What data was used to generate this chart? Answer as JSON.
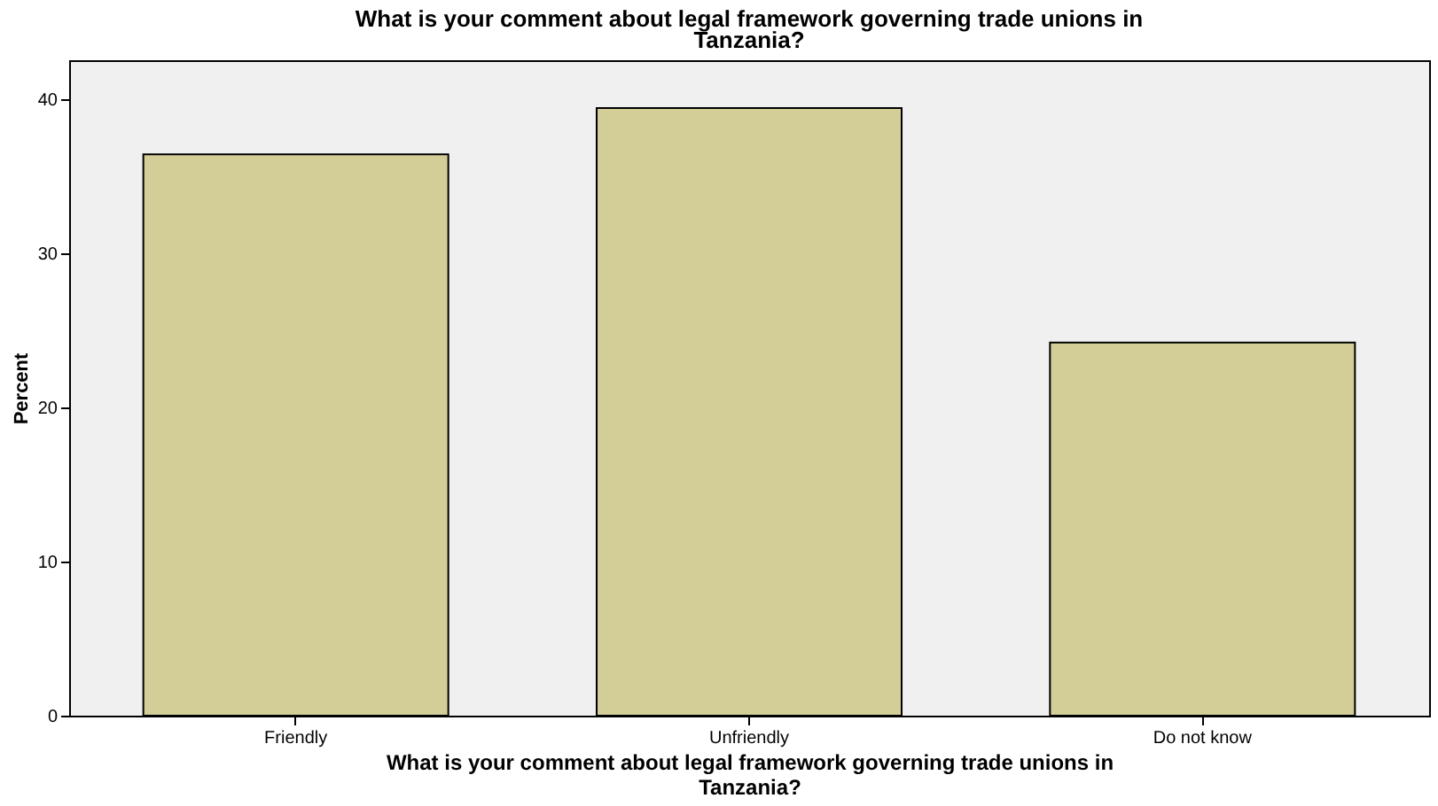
{
  "chart_data": {
    "type": "bar",
    "title": "What is your comment about legal framework governing trade unions in Tanzania?",
    "xlabel": "What is your comment about legal framework governing trade unions in Tanzania?",
    "ylabel": "Percent",
    "categories": [
      "Friendly",
      "Unfriendly",
      "Do not know"
    ],
    "values": [
      36.4,
      39.4,
      24.2
    ],
    "color": "#d3ce97",
    "ylim": [
      0,
      42.5
    ],
    "yticks": [
      0,
      10,
      20,
      30,
      40
    ],
    "grid": false
  }
}
